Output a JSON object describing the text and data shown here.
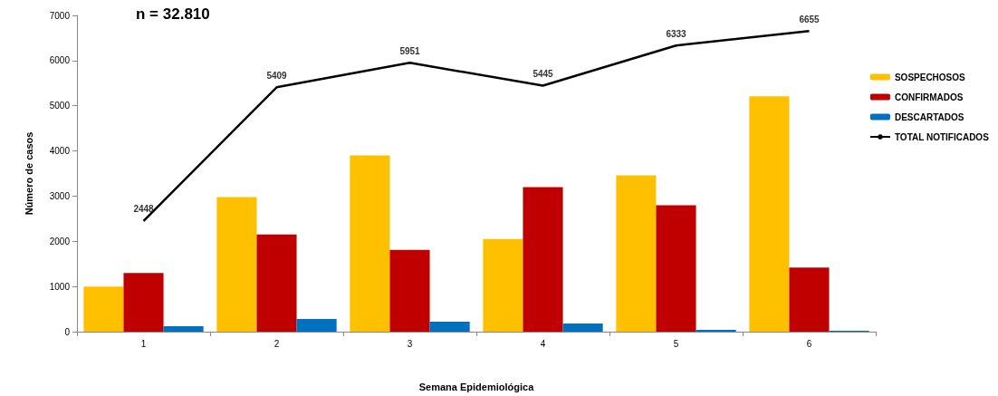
{
  "chart_data": {
    "type": "bar",
    "title": "n = 32.810",
    "xlabel": "Semana Epidemiológica",
    "ylabel": "Número de casos",
    "categories": [
      "1",
      "2",
      "3",
      "4",
      "5",
      "6"
    ],
    "series": [
      {
        "name": "SOSPECHOSOS",
        "color": "#ffc000",
        "values": [
          1000,
          2980,
          3900,
          2050,
          3460,
          5210
        ]
      },
      {
        "name": "CONFIRMADOS",
        "color": "#c00000",
        "values": [
          1300,
          2150,
          1810,
          3200,
          2800,
          1420
        ]
      },
      {
        "name": "DESCARTADOS",
        "color": "#0070c0",
        "values": [
          120,
          280,
          220,
          180,
          40,
          20
        ]
      },
      {
        "name": "TOTAL NOTIFICADOS",
        "type": "line",
        "color": "#000000",
        "values": [
          2448,
          5409,
          5951,
          5445,
          6333,
          6655
        ],
        "value_labels": [
          "2448",
          "5409",
          "5951",
          "5445",
          "6333",
          "6655"
        ]
      }
    ],
    "ylim": [
      0,
      7000
    ],
    "yticks": [
      0,
      1000,
      2000,
      3000,
      4000,
      5000,
      6000,
      7000
    ],
    "grid": false,
    "legend": "right",
    "marker": "none",
    "line_style": "solid"
  }
}
